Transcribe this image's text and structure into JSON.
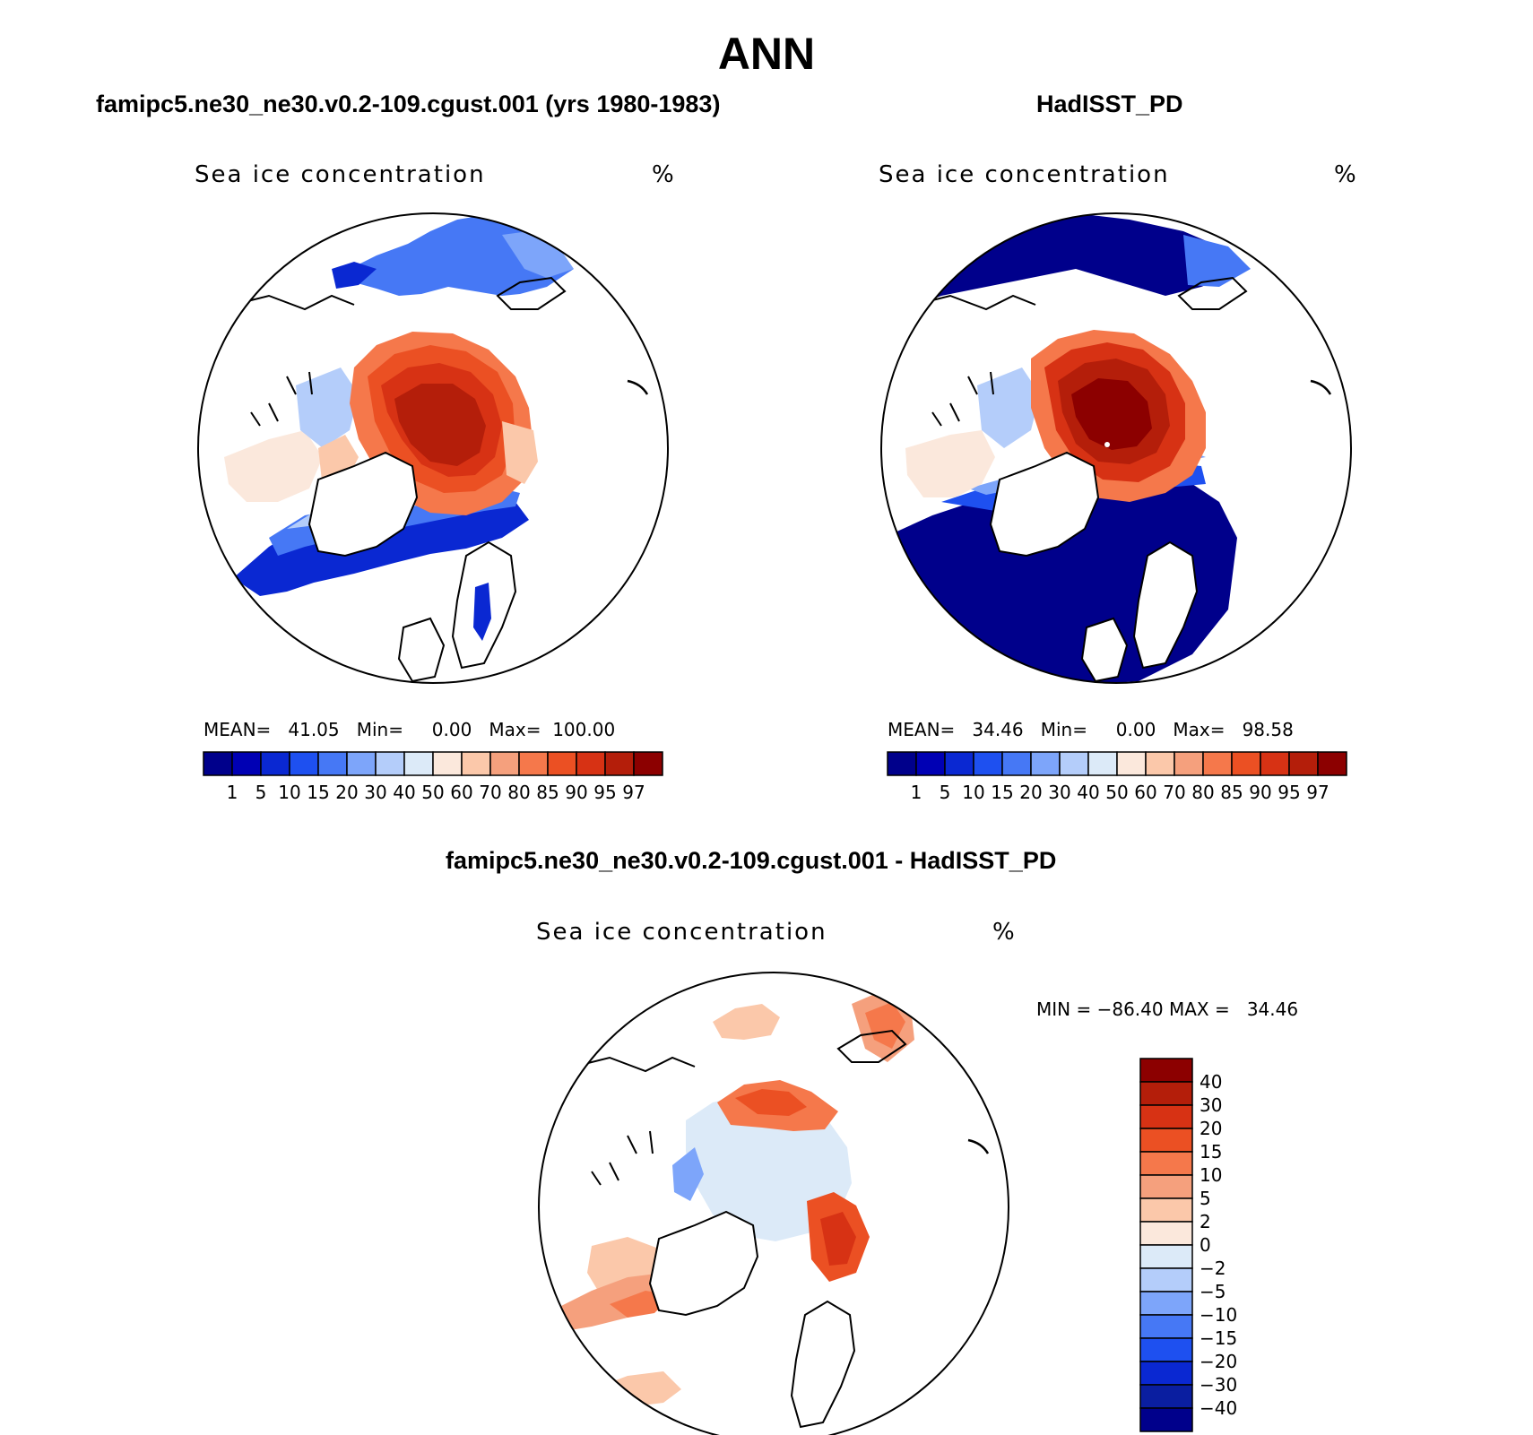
{
  "title": "ANN",
  "panels": [
    {
      "title": "famipc5.ne30_ne30.v0.2-109.cgust.001 (yrs 1980-1983)",
      "variable": "Sea ice concentration",
      "units": "%",
      "stats": {
        "mean_label": "MEAN=",
        "mean": "41.05",
        "min_label": "Min=",
        "min": "0.00",
        "max_label": "Max=",
        "max": "100.00"
      },
      "ice_extent": "model"
    },
    {
      "title": "HadISST_PD",
      "variable": "Sea ice concentration",
      "units": "%",
      "stats": {
        "mean_label": "MEAN=",
        "mean": "34.46",
        "min_label": "Min=",
        "min": "0.00",
        "max_label": "Max=",
        "max": "98.58"
      },
      "ice_extent": "observed"
    },
    {
      "title": "famipc5.ne30_ne30.v0.2-109.cgust.001 - HadISST_PD",
      "variable": "Sea ice concentration",
      "units": "%",
      "stats": {
        "min_label": "MIN =",
        "min": "−86.40",
        "max_label": "MAX =",
        "max": "34.46"
      },
      "ice_extent": "difference"
    }
  ],
  "colorbar_abs": {
    "colors": [
      "#00008b",
      "#0000b4",
      "#0a28d2",
      "#1e50f0",
      "#4678f5",
      "#7da5fa",
      "#b4cdfa",
      "#dceaf8",
      "#fbe8dc",
      "#fbc8aa",
      "#f5a07d",
      "#f5784b",
      "#eb5023",
      "#d73214",
      "#b41e0a",
      "#8c0000"
    ],
    "labels": [
      "1",
      "5",
      "10",
      "15",
      "20",
      "30",
      "40",
      "50",
      "60",
      "70",
      "80",
      "85",
      "90",
      "95",
      "97"
    ]
  },
  "colorbar_diff": {
    "colors": [
      "#00008b",
      "#0a1ea0",
      "#0a28d2",
      "#1e50f0",
      "#4678f5",
      "#7da5fa",
      "#b4cdfa",
      "#dceaf8",
      "#fbe8dc",
      "#fbc8aa",
      "#f5a07d",
      "#f5784b",
      "#eb5023",
      "#d73214",
      "#b41e0a",
      "#8c0000"
    ],
    "labels": [
      "40",
      "30",
      "20",
      "15",
      "10",
      "5",
      "2",
      "0",
      "−2",
      "−5",
      "−10",
      "−15",
      "−20",
      "−30",
      "−40"
    ]
  }
}
